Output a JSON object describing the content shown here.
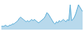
{
  "chart_data": {
    "type": "area",
    "values": [
      3,
      3,
      3,
      4,
      3,
      3,
      4,
      4,
      5,
      5,
      6,
      7,
      8,
      10,
      11,
      10,
      9,
      8,
      7,
      8,
      7,
      8,
      9,
      8,
      9,
      8,
      7,
      6,
      7,
      8,
      9,
      10,
      12,
      15,
      14,
      12,
      10,
      8,
      6,
      5,
      7,
      6,
      8,
      7,
      8,
      9,
      8,
      7,
      9,
      8,
      22,
      8,
      9,
      11,
      14,
      18,
      22,
      20,
      18,
      16
    ],
    "colors": [
      "#4fa8d5",
      "#b8d9ec"
    ],
    "ylim": [
      0,
      25
    ],
    "tick_labels": false,
    "grid": false
  }
}
